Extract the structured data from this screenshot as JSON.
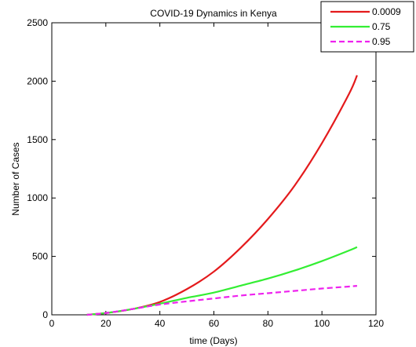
{
  "chart_data": {
    "type": "line",
    "title": "COVID-19 Dynamics in Kenya",
    "xlabel": "time (Days)",
    "ylabel": "Number of Cases",
    "xlim": [
      0,
      120
    ],
    "ylim": [
      0,
      2500
    ],
    "xticks": [
      0,
      20,
      40,
      60,
      80,
      100,
      120
    ],
    "yticks": [
      0,
      500,
      1000,
      1500,
      2000,
      2500
    ],
    "grid": false,
    "legend_position": "top-right",
    "series": [
      {
        "name": "0.0009",
        "color": "#e41a1c",
        "dash": "solid",
        "x": [
          13,
          20,
          30,
          40,
          50,
          60,
          70,
          80,
          90,
          100,
          110,
          113
        ],
        "y": [
          0,
          15,
          50,
          110,
          220,
          370,
          575,
          820,
          1110,
          1470,
          1890,
          2050
        ]
      },
      {
        "name": "0.75",
        "color": "#33ee33",
        "dash": "solid",
        "x": [
          13,
          20,
          30,
          40,
          50,
          60,
          70,
          80,
          90,
          100,
          110,
          113
        ],
        "y": [
          0,
          15,
          50,
          95,
          145,
          190,
          250,
          310,
          380,
          460,
          550,
          580
        ]
      },
      {
        "name": "0.95",
        "color": "#ee22ee",
        "dash": "dashed",
        "x": [
          13,
          20,
          30,
          40,
          50,
          60,
          70,
          80,
          90,
          100,
          110,
          113
        ],
        "y": [
          0,
          15,
          50,
          88,
          115,
          140,
          165,
          185,
          205,
          225,
          242,
          248
        ]
      }
    ]
  }
}
